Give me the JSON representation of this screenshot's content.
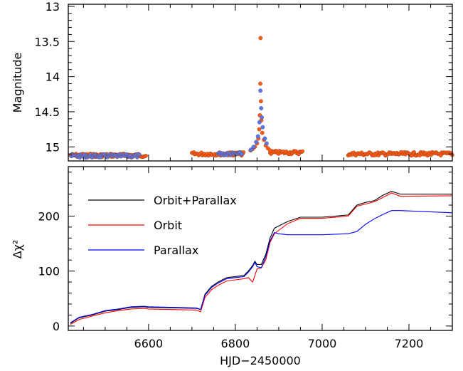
{
  "chart_data": [
    {
      "type": "scatter",
      "panel": "top",
      "ylabel": "Magnitude",
      "y_inverted": true,
      "xlim": [
        6415,
        7300
      ],
      "ylim": [
        12.97,
        15.2
      ],
      "y_ticks": [
        "13",
        "13.5",
        "14",
        "14.5",
        "15"
      ],
      "y_tick_values": [
        13,
        13.5,
        14,
        14.5,
        15
      ],
      "colors": {
        "orange": "#ff5a14",
        "blue": "#5a78e6"
      },
      "segments": [
        {
          "from": 6420,
          "to": 6595,
          "mag": 15.12,
          "color": "orange"
        },
        {
          "from": 6422,
          "to": 6580,
          "mag": 15.13,
          "color": "blue"
        },
        {
          "from": 6700,
          "to": 6820,
          "mag": 15.1,
          "color": "orange"
        },
        {
          "from": 6760,
          "to": 6815,
          "mag": 15.1,
          "color": "blue"
        },
        {
          "from": 6880,
          "to": 6955,
          "mag": 15.08,
          "color": "orange"
        },
        {
          "from": 7060,
          "to": 7300,
          "mag": 15.1,
          "color": "orange"
        }
      ],
      "peak": {
        "t0": 6858.5,
        "u_base": 15.05,
        "points_orange": [
          [
            6858,
            13.45
          ],
          [
            6857.5,
            14.1
          ],
          [
            6859,
            14.35
          ],
          [
            6856.5,
            14.55
          ],
          [
            6860,
            14.62
          ],
          [
            6855,
            14.75
          ],
          [
            6862,
            14.8
          ],
          [
            6853,
            14.88
          ],
          [
            6866,
            14.9
          ],
          [
            6850,
            14.95
          ],
          [
            6870,
            14.98
          ],
          [
            6845,
            15.0
          ],
          [
            6875,
            15.02
          ],
          [
            6840,
            15.03
          ],
          [
            6835,
            15.05
          ],
          [
            6880,
            15.05
          ]
        ],
        "points_blue": [
          [
            6857.8,
            14.2
          ],
          [
            6859.5,
            14.45
          ],
          [
            6861,
            14.58
          ],
          [
            6863,
            14.72
          ],
          [
            6855.5,
            14.65
          ],
          [
            6852,
            14.85
          ],
          [
            6868,
            14.88
          ],
          [
            6872,
            14.95
          ],
          [
            6848,
            14.93
          ],
          [
            6842,
            15.0
          ],
          [
            6836,
            15.04
          ]
        ]
      }
    },
    {
      "type": "line",
      "panel": "bottom",
      "xlabel": "HJD−2450000",
      "ylabel": "Δχ²",
      "xlim": [
        6415,
        7300
      ],
      "ylim": [
        -8,
        290
      ],
      "x_ticks": [
        "6600",
        "6800",
        "7000",
        "7200"
      ],
      "x_tick_values": [
        6600,
        6800,
        7000,
        7200
      ],
      "y_ticks": [
        "0",
        "100",
        "200"
      ],
      "y_tick_values": [
        0,
        100,
        200
      ],
      "series": [
        {
          "name": "Orbit+Parallax",
          "color": "#000000",
          "x": [
            6420,
            6440,
            6470,
            6500,
            6530,
            6560,
            6590,
            6600,
            6710,
            6720,
            6730,
            6745,
            6760,
            6780,
            6800,
            6820,
            6830,
            6840,
            6845,
            6850,
            6860,
            6870,
            6880,
            6890,
            6900,
            6920,
            6950,
            7000,
            7060,
            7080,
            7100,
            7120,
            7140,
            7160,
            7180,
            7300
          ],
          "values": [
            5,
            15,
            20,
            27,
            30,
            34,
            35,
            34,
            32,
            30,
            58,
            72,
            80,
            88,
            90,
            92,
            100,
            110,
            118,
            112,
            112,
            130,
            160,
            178,
            182,
            190,
            198,
            198,
            202,
            220,
            225,
            228,
            238,
            245,
            240,
            240
          ]
        },
        {
          "name": "Orbit",
          "color": "#ff0000",
          "x": [
            6420,
            6440,
            6470,
            6500,
            6530,
            6560,
            6590,
            6600,
            6710,
            6720,
            6730,
            6745,
            6760,
            6780,
            6800,
            6820,
            6830,
            6840,
            6845,
            6850,
            6860,
            6870,
            6880,
            6890,
            6900,
            6920,
            6950,
            7000,
            7060,
            7080,
            7100,
            7120,
            7140,
            7160,
            7180,
            7300
          ],
          "values": [
            3,
            12,
            18,
            24,
            28,
            31,
            32,
            31,
            29,
            26,
            52,
            66,
            74,
            82,
            84,
            86,
            88,
            80,
            92,
            104,
            106,
            120,
            152,
            168,
            174,
            186,
            196,
            196,
            200,
            218,
            222,
            226,
            234,
            242,
            236,
            237
          ]
        },
        {
          "name": "Parallax",
          "color": "#0000ff",
          "x": [
            6420,
            6440,
            6470,
            6500,
            6530,
            6560,
            6590,
            6600,
            6710,
            6720,
            6730,
            6745,
            6760,
            6780,
            6800,
            6820,
            6830,
            6840,
            6845,
            6850,
            6860,
            6870,
            6880,
            6890,
            6900,
            6920,
            6950,
            7000,
            7060,
            7080,
            7100,
            7120,
            7140,
            7160,
            7180,
            7300
          ],
          "values": [
            6,
            16,
            21,
            28,
            31,
            35,
            36,
            35,
            33,
            30,
            56,
            70,
            78,
            86,
            88,
            90,
            98,
            108,
            116,
            108,
            106,
            126,
            155,
            170,
            168,
            166,
            166,
            166,
            168,
            172,
            185,
            195,
            203,
            210,
            210,
            206
          ]
        }
      ],
      "legend": [
        {
          "label": "Orbit+Parallax",
          "color": "#000000"
        },
        {
          "label": "Orbit",
          "color": "#ff0000"
        },
        {
          "label": "Parallax",
          "color": "#0000ff"
        }
      ]
    }
  ]
}
